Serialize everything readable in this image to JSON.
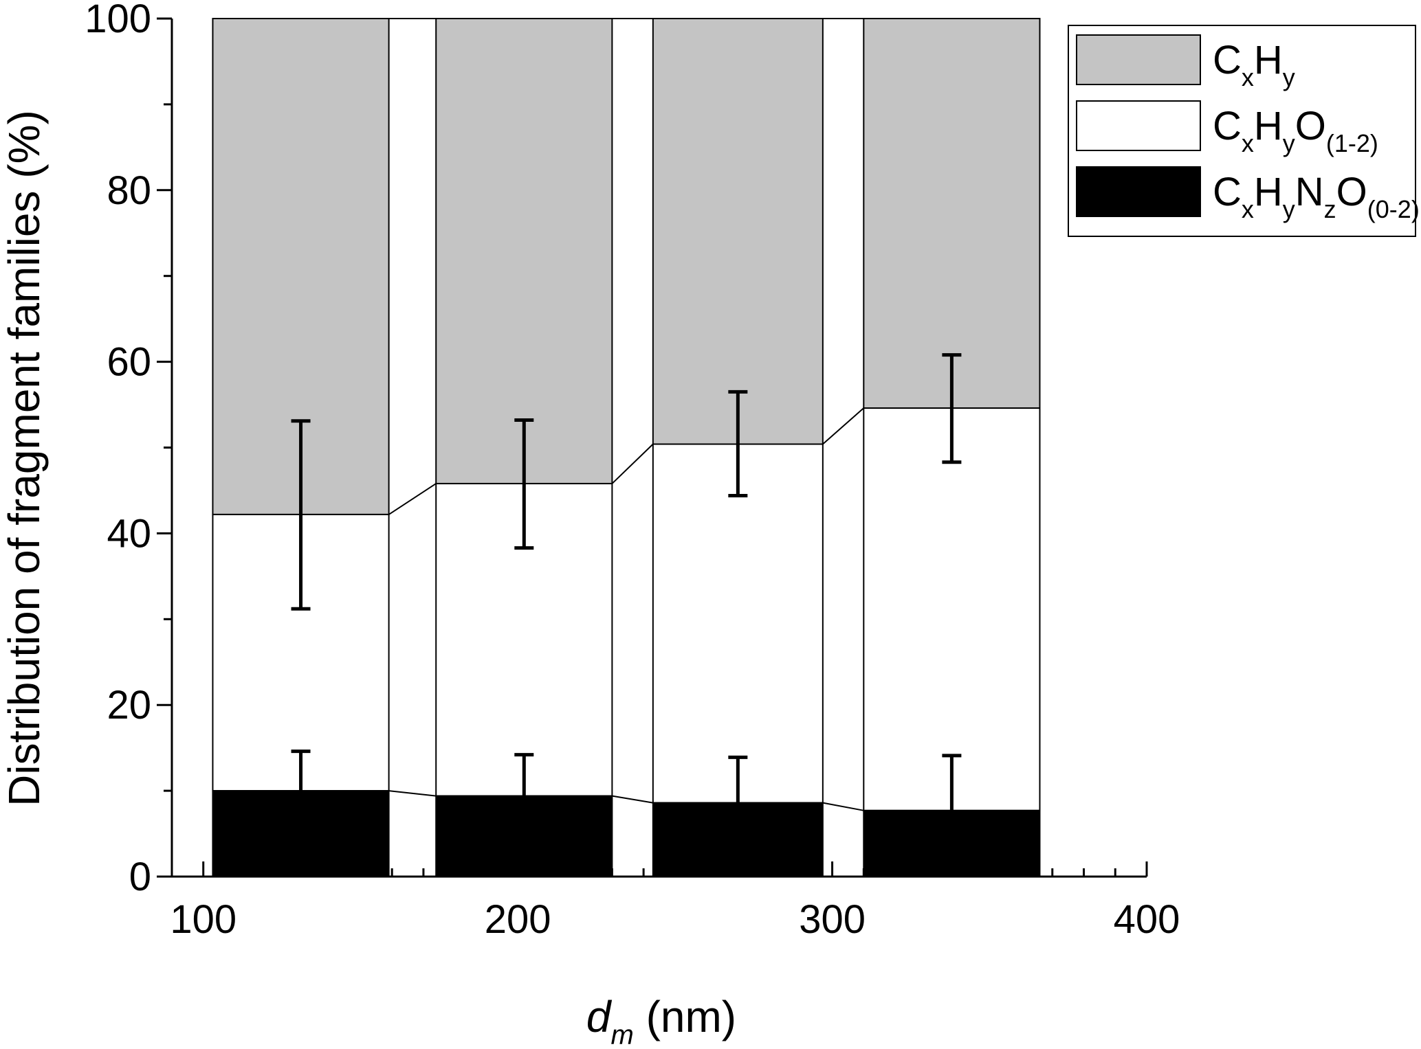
{
  "chart_data": {
    "type": "bar",
    "stacked": true,
    "x_label_var": "d",
    "x_label_sub": "m",
    "x_label_unit": " (nm)",
    "ylabel": "Distribution of fragment families (%)",
    "xlim": [
      90,
      400
    ],
    "ylim": [
      0,
      100
    ],
    "x_ticks": [
      100,
      200,
      300,
      400
    ],
    "y_ticks": [
      0,
      20,
      40,
      60,
      80,
      100
    ],
    "x_minor_step": 10,
    "y_minor_step": 10,
    "legend_position": "top-right",
    "grid": false,
    "bars": [
      {
        "x_start": 103,
        "x_end": 159,
        "center": 131,
        "nitrogen": 10.0,
        "oxygen_top": 42.2,
        "err_low_oxygen": 31.2,
        "err_high_oxygen": 53.1,
        "err_high_nitrogen": 14.6
      },
      {
        "x_start": 174,
        "x_end": 230,
        "center": 202,
        "nitrogen": 9.4,
        "oxygen_top": 45.8,
        "err_low_oxygen": 38.3,
        "err_high_oxygen": 53.2,
        "err_high_nitrogen": 14.2
      },
      {
        "x_start": 243,
        "x_end": 297,
        "center": 270,
        "nitrogen": 8.6,
        "oxygen_top": 50.4,
        "err_low_oxygen": 44.4,
        "err_high_oxygen": 56.5,
        "err_high_nitrogen": 13.9
      },
      {
        "x_start": 310,
        "x_end": 366,
        "center": 338,
        "nitrogen": 7.7,
        "oxygen_top": 54.6,
        "err_low_oxygen": 48.3,
        "err_high_oxygen": 60.8,
        "err_high_nitrogen": 14.1
      }
    ],
    "series": [
      {
        "name": "CxHy",
        "base": "C",
        "parts": [
          {
            "t": "x",
            "sub": true
          },
          {
            "t": "H",
            "sub": false
          },
          {
            "t": "y",
            "sub": true
          }
        ],
        "color": "#c4c4c4"
      },
      {
        "name": "CxHyO(1-2)",
        "base": "C",
        "parts": [
          {
            "t": "x",
            "sub": true
          },
          {
            "t": "H",
            "sub": false
          },
          {
            "t": "y",
            "sub": true
          },
          {
            "t": "O",
            "sub": false
          },
          {
            "t": "(1-2)",
            "sub": true
          }
        ],
        "color": "#ffffff"
      },
      {
        "name": "CxHyNzO(0-2)",
        "base": "C",
        "parts": [
          {
            "t": "x",
            "sub": true
          },
          {
            "t": "H",
            "sub": false
          },
          {
            "t": "y",
            "sub": true
          },
          {
            "t": "N",
            "sub": false
          },
          {
            "t": "z",
            "sub": true
          },
          {
            "t": "O",
            "sub": false
          },
          {
            "t": "(0-2)",
            "sub": true
          }
        ],
        "color": "#000000"
      }
    ]
  }
}
